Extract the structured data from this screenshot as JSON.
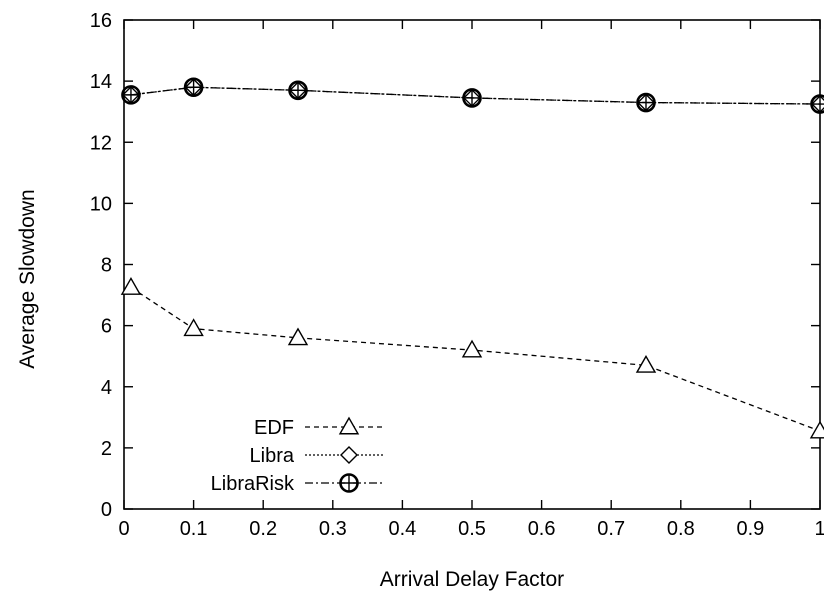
{
  "chart_data": {
    "type": "line",
    "title": "",
    "xlabel": "Arrival Delay Factor",
    "ylabel": "Average Slowdown",
    "xlim": [
      0,
      1
    ],
    "ylim": [
      0,
      16
    ],
    "x_ticks": [
      "0",
      "0.1",
      "0.2",
      "0.3",
      "0.4",
      "0.5",
      "0.6",
      "0.7",
      "0.8",
      "0.9",
      "1"
    ],
    "y_ticks": [
      "0",
      "2",
      "4",
      "6",
      "8",
      "10",
      "12",
      "14",
      "16"
    ],
    "grid": false,
    "legend_position": "bottom-left",
    "series": [
      {
        "name": "EDF",
        "marker": "triangle",
        "line_style": "dashed",
        "x": [
          0.01,
          0.1,
          0.25,
          0.5,
          0.75,
          1.0
        ],
        "y": [
          7.25,
          5.9,
          5.6,
          5.2,
          4.7,
          2.55
        ]
      },
      {
        "name": "Libra",
        "marker": "diamond",
        "line_style": "dotted",
        "x": [
          0.01,
          0.1,
          0.25,
          0.5,
          0.75,
          1.0
        ],
        "y": [
          13.55,
          13.8,
          13.7,
          13.45,
          13.3,
          13.25
        ]
      },
      {
        "name": "LibraRisk",
        "marker": "circle-plus",
        "line_style": "dash-dot",
        "x": [
          0.01,
          0.1,
          0.25,
          0.5,
          0.75,
          1.0
        ],
        "y": [
          13.55,
          13.8,
          13.7,
          13.45,
          13.3,
          13.25
        ]
      }
    ]
  }
}
